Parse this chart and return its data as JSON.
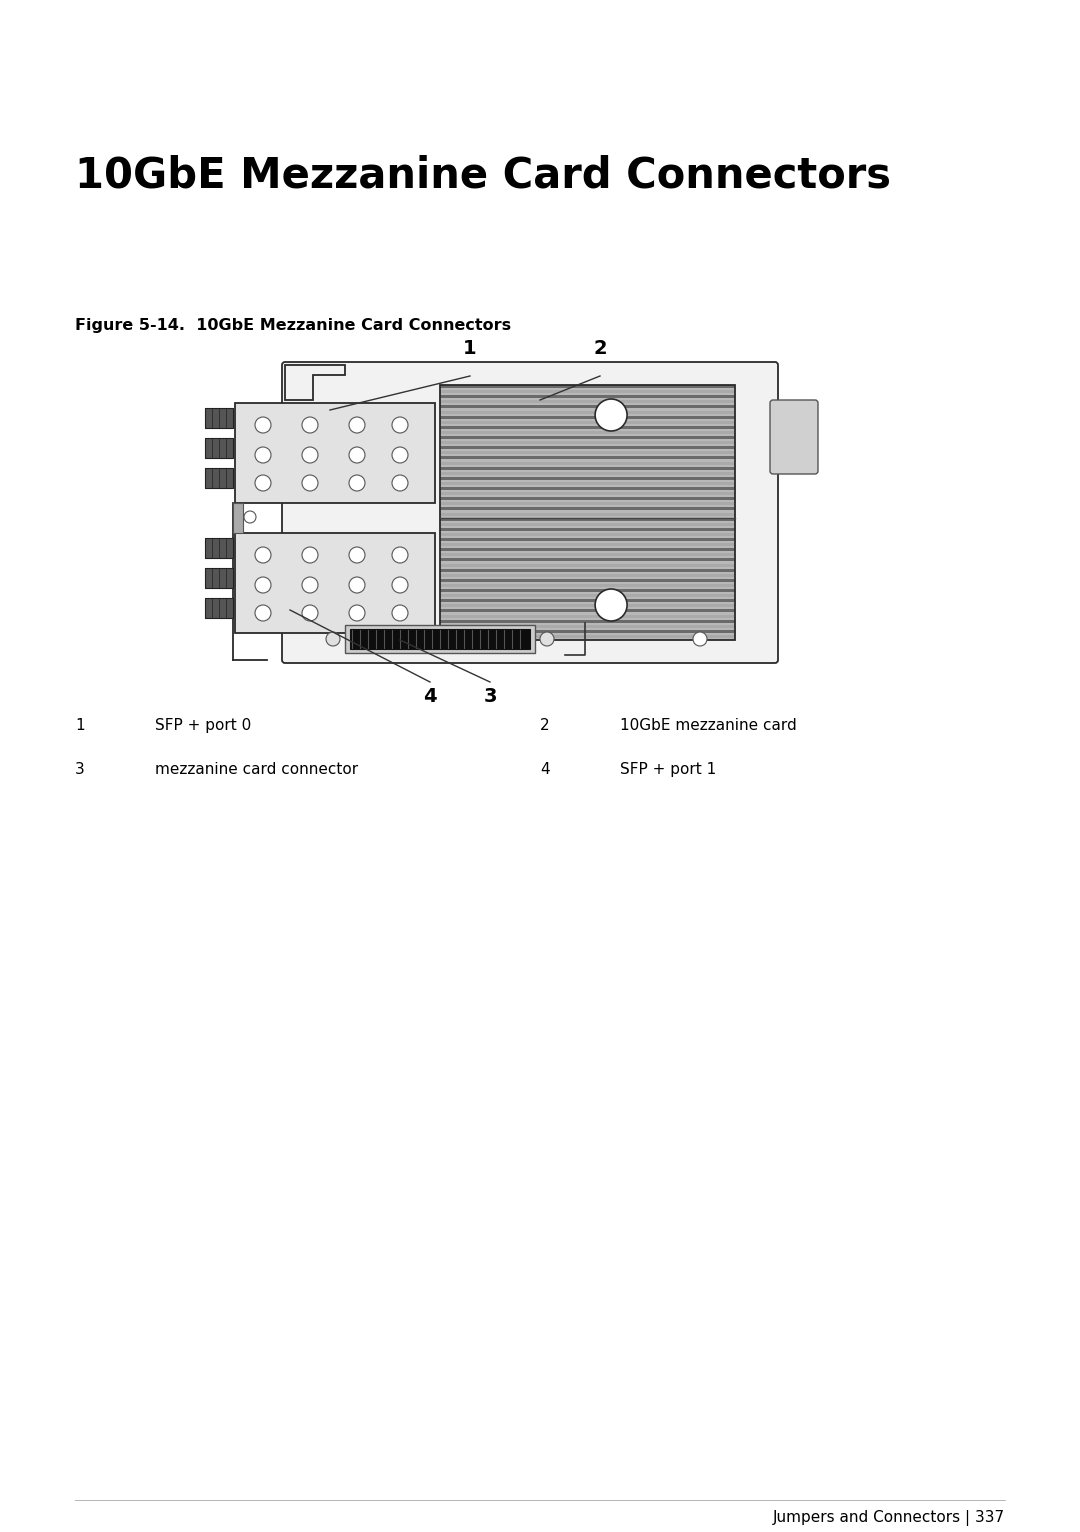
{
  "title": "10GbE Mezzanine Card Connectors",
  "figure_label": "Figure 5-14.  10GbE Mezzanine Card Connectors",
  "items": [
    {
      "num": "1",
      "label": "SFP + port 0"
    },
    {
      "num": "2",
      "label": "10GbE mezzanine card"
    },
    {
      "num": "3",
      "label": "mezzanine card connector"
    },
    {
      "num": "4",
      "label": "SFP + port 1"
    }
  ],
  "footer": "Jumpers and Connectors | 337",
  "bg_color": "#ffffff",
  "text_color": "#000000",
  "title_fontsize": 30,
  "figure_label_fontsize": 11.5,
  "item_fontsize": 11,
  "footer_fontsize": 11
}
